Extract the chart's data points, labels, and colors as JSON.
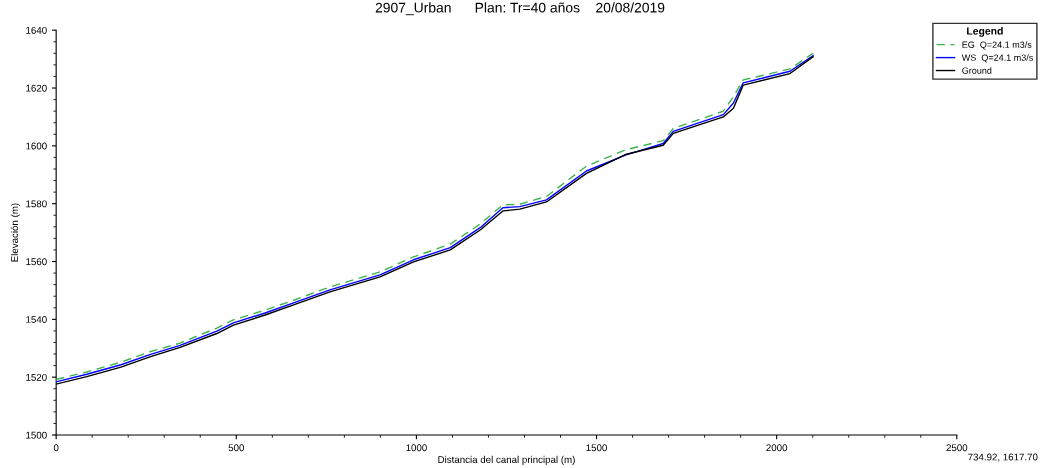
{
  "chart_data": {
    "type": "line",
    "title": "2907_Urban      Plan: Tr=40 años    20/08/2019",
    "xlabel": "Distancia del canal principal (m)",
    "ylabel": "Elevación (m)",
    "x": [
      0,
      85,
      180,
      260,
      344,
      446,
      492,
      580,
      659,
      760,
      899,
      992,
      1094,
      1177,
      1240,
      1287,
      1361,
      1472,
      1580,
      1685,
      1713,
      1852,
      1880,
      1907,
      2037,
      2101
    ],
    "series": [
      {
        "name": "EG  Q=24.1 m3/s",
        "color": "#3cb44b",
        "line_style": "dashed",
        "values": [
          1519.2,
          1521.8,
          1525.2,
          1528.8,
          1531.8,
          1537,
          1539.8,
          1543.2,
          1546.6,
          1551.2,
          1556.4,
          1561.6,
          1566,
          1573,
          1579.6,
          1579.8,
          1582.5,
          1593,
          1598.6,
          1601.8,
          1606,
          1612,
          1617,
          1622.8,
          1626.6,
          1632
        ]
      },
      {
        "name": "WS  Q=24.1 m3/s",
        "color": "#0000ff",
        "line_style": "solid",
        "values": [
          1518.4,
          1521,
          1524.3,
          1527.8,
          1531,
          1535.9,
          1538.8,
          1542.2,
          1545.7,
          1550.2,
          1555.4,
          1560.6,
          1564.8,
          1571.7,
          1578.6,
          1579,
          1581.3,
          1591.3,
          1596.8,
          1600.8,
          1605,
          1610.8,
          1614.8,
          1621.8,
          1625.8,
          1631.2
        ]
      },
      {
        "name": "Ground",
        "color": "#000000",
        "line_style": "solid",
        "values": [
          1517.6,
          1520.2,
          1523.5,
          1527,
          1530.3,
          1535.1,
          1538,
          1541.5,
          1545,
          1549.5,
          1554.7,
          1559.9,
          1564,
          1570.9,
          1577.5,
          1578.1,
          1580.6,
          1590.5,
          1597,
          1600.2,
          1604.3,
          1610,
          1613,
          1621,
          1625,
          1630.8
        ]
      }
    ],
    "xlim": [
      0,
      2500
    ],
    "xticks": [
      0,
      500,
      1000,
      1500,
      2000,
      2500
    ],
    "ylim": [
      1500,
      1640
    ],
    "yticks": [
      1500,
      1520,
      1540,
      1560,
      1580,
      1600,
      1620,
      1640
    ],
    "legend": "top right",
    "legend_title": "Legend",
    "grid": false,
    "marker": "none",
    "annotations": [
      "734.92, 1617.70"
    ]
  }
}
